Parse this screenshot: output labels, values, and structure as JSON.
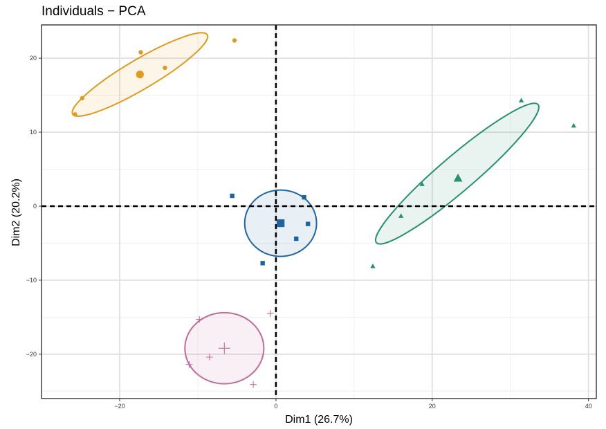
{
  "chart_data": {
    "type": "scatter",
    "title": "Individuals − PCA",
    "xlabel": "Dim1 (26.7%)",
    "ylabel": "Dim2 (20.2%)",
    "xlim": [
      -30,
      41
    ],
    "ylim": [
      -26,
      24.5
    ],
    "x_ticks": [
      -20,
      0,
      20,
      40
    ],
    "y_ticks": [
      -20,
      -10,
      0,
      10,
      20
    ],
    "x_tick_labels": [
      "−20",
      "0",
      "20",
      "40"
    ],
    "y_tick_labels": [
      "−20",
      "−10",
      "0",
      "10",
      "20"
    ],
    "grid": true,
    "reference_lines": {
      "x": 0,
      "y": 0,
      "style": "dashed"
    },
    "groups": [
      {
        "color": "#DE9B20",
        "shape": "circle",
        "points": [
          {
            "x": -24.8,
            "y": 14.6
          },
          {
            "x": -25.7,
            "y": 12.4
          },
          {
            "x": -17.3,
            "y": 20.8
          },
          {
            "x": -14.2,
            "y": 18.7
          },
          {
            "x": -5.3,
            "y": 22.4
          }
        ],
        "center": {
          "x": -17.4,
          "y": 17.8
        },
        "ellipse": {
          "cx": -17.4,
          "cy": 17.8,
          "rx": 10.0,
          "ry": 1.9,
          "angle_deg": 30.5
        }
      },
      {
        "color": "#2A9170",
        "shape": "triangle",
        "points": [
          {
            "x": 31.4,
            "y": 14.3
          },
          {
            "x": 38.1,
            "y": 10.9
          },
          {
            "x": 18.7,
            "y": 3.0
          },
          {
            "x": 16.0,
            "y": -1.3
          },
          {
            "x": 12.4,
            "y": -8.1
          }
        ],
        "center": {
          "x": 23.3,
          "y": 3.8
        },
        "ellipse": {
          "cx": 23.2,
          "cy": 4.4,
          "rx": 13.6,
          "ry": 2.25,
          "angle_deg": 40.5
        }
      },
      {
        "color": "#1E65A0",
        "shape": "square",
        "points": [
          {
            "x": -5.6,
            "y": 1.4
          },
          {
            "x": 3.6,
            "y": 1.2
          },
          {
            "x": 4.1,
            "y": -2.4
          },
          {
            "x": 2.6,
            "y": -4.4
          },
          {
            "x": -1.7,
            "y": -7.7
          }
        ],
        "center": {
          "x": 0.6,
          "y": -2.3
        },
        "ellipse": {
          "cx": 0.6,
          "cy": -2.3,
          "rx": 4.6,
          "ry": 4.25,
          "angle_deg": 0
        }
      },
      {
        "color": "#C06C9A",
        "shape": "plus",
        "points": [
          {
            "x": -9.8,
            "y": -15.3
          },
          {
            "x": -0.7,
            "y": -14.5
          },
          {
            "x": -8.5,
            "y": -20.4
          },
          {
            "x": -11.1,
            "y": -21.4
          },
          {
            "x": -2.9,
            "y": -24.1
          }
        ],
        "center": {
          "x": -6.6,
          "y": -19.2
        },
        "ellipse": {
          "cx": -6.6,
          "cy": -19.2,
          "rx": 5.05,
          "ry": 4.55,
          "angle_deg": 0
        }
      }
    ]
  }
}
